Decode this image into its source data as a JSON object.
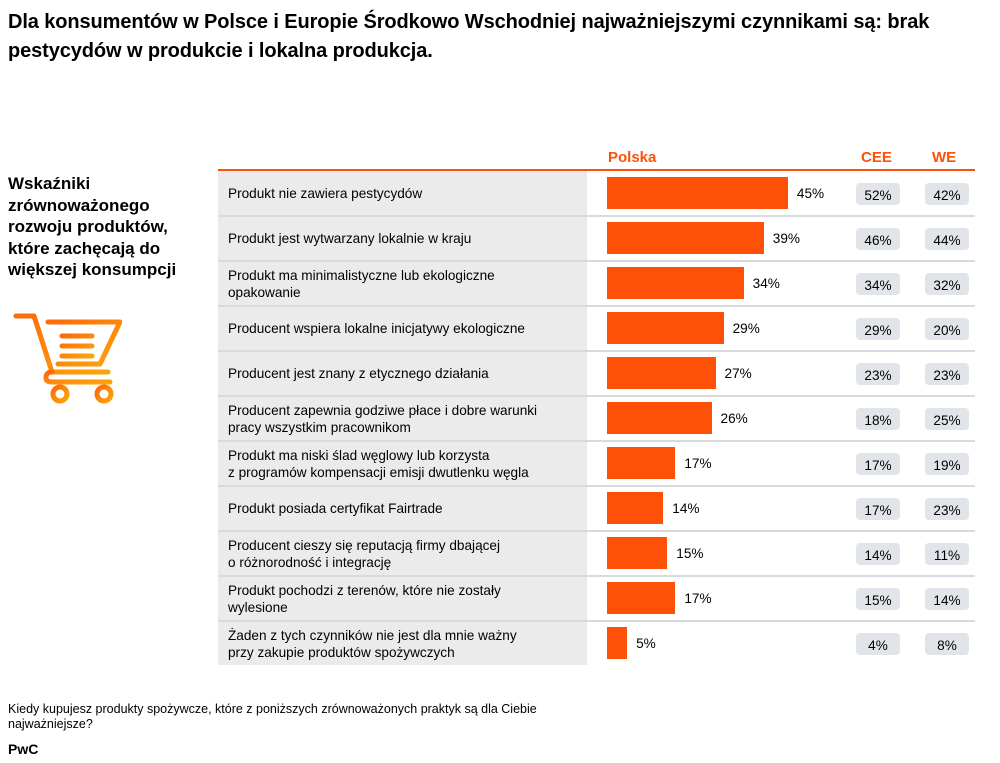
{
  "title": "Dla konsumentów w Polsce i Europie Środkowo Wschodniej najważniejszymi czynnikami są: brak pestycydów w produkcie i lokalna produkcja.",
  "side_title": "Wskaźniki zrównoważonego rozwoju produktów, które zachęcają do większej konsumpcji",
  "icon": "shopping-cart-icon",
  "colors": {
    "accent": "#fd5108",
    "label_bg": "#ebebeb",
    "pill_bg": "#e1e4e8",
    "divider": "#d5dbe1"
  },
  "question": "Kiedy kupujesz produkty spożywcze, które z poniższych zrównoważonych praktyk są dla Ciebie najważniejsze?",
  "brand": "PwC",
  "chart_data": {
    "type": "bar",
    "orientation": "horizontal",
    "title": "Wskaźniki zrównoważonego rozwoju produktów, które zachęcają do większej konsumpcji",
    "column_headers": {
      "polska": "Polska",
      "cee": "CEE",
      "we": "WE"
    },
    "unit": "%",
    "categories": [
      "Produkt nie zawiera pestycydów",
      "Produkt jest wytwarzany lokalnie w kraju",
      "Produkt ma minimalistyczne lub ekologiczne opakowanie",
      "Producent wspiera lokalne inicjatywy ekologiczne",
      "Producent jest znany z etycznego działania",
      "Producent zapewnia godziwe płace i dobre warunki pracy wszystkim pracownikom",
      "Produkt ma niski ślad węglowy lub korzysta z programów kompensacji emisji dwutlenku węgla",
      "Produkt posiada certyfikat Fairtrade",
      "Producent cieszy się reputacją firmy dbającej o różnorodność i integrację",
      "Produkt pochodzi z terenów, które nie zostały wylesione",
      "Żaden z tych czynników nie jest dla mnie ważny przy zakupie produktów spożywczych"
    ],
    "series": [
      {
        "name": "Polska",
        "values": [
          45,
          39,
          34,
          29,
          27,
          26,
          17,
          14,
          15,
          17,
          5
        ]
      },
      {
        "name": "CEE",
        "values": [
          52,
          46,
          34,
          29,
          23,
          18,
          17,
          17,
          14,
          15,
          4
        ]
      },
      {
        "name": "WE",
        "values": [
          42,
          44,
          32,
          20,
          23,
          25,
          19,
          23,
          11,
          14,
          8
        ]
      }
    ],
    "rows": [
      {
        "label": "Produkt nie zawiera pestycydów",
        "polska": "45%",
        "cee": "52%",
        "we": "42%"
      },
      {
        "label": "Produkt jest wytwarzany lokalnie w kraju",
        "polska": "39%",
        "cee": "46%",
        "we": "44%"
      },
      {
        "label": "Produkt ma minimalistyczne lub ekologiczne\nopakowanie",
        "polska": "34%",
        "cee": "34%",
        "we": "32%"
      },
      {
        "label": "Producent wspiera lokalne inicjatywy ekologiczne",
        "polska": "29%",
        "cee": "29%",
        "we": "20%"
      },
      {
        "label": "Producent jest znany z etycznego działania",
        "polska": "27%",
        "cee": "23%",
        "we": "23%"
      },
      {
        "label": "Producent zapewnia godziwe płace i dobre warunki\npracy wszystkim pracownikom",
        "polska": "26%",
        "cee": "18%",
        "we": "25%"
      },
      {
        "label": "Produkt ma niski ślad węglowy lub korzysta\nz programów kompensacji emisji dwutlenku węgla",
        "polska": "17%",
        "cee": "17%",
        "we": "19%"
      },
      {
        "label": "Produkt posiada certyfikat Fairtrade",
        "polska": "14%",
        "cee": "17%",
        "we": "23%"
      },
      {
        "label": "Producent cieszy się reputacją firmy dbającej\no różnorodność i integrację",
        "polska": "15%",
        "cee": "14%",
        "we": "11%"
      },
      {
        "label": "Produkt pochodzi z terenów, które nie zostały\nwylesione",
        "polska": "17%",
        "cee": "15%",
        "we": "14%"
      },
      {
        "label": "Żaden z tych czynników nie jest dla mnie ważny\nprzy zakupie produktów spożywczych",
        "polska": "5%",
        "cee": "4%",
        "we": "8%"
      }
    ],
    "xlim": [
      0,
      100
    ],
    "grid": false,
    "legend": "none"
  }
}
